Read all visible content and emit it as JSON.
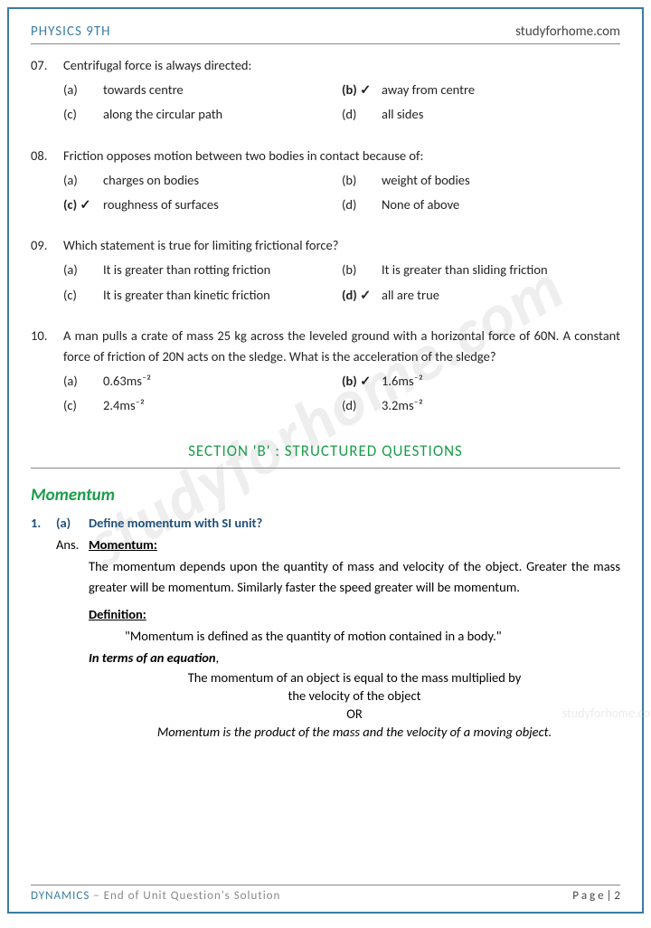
{
  "header": {
    "left": "PHYSICS 9TH",
    "right": "studyforhome.com"
  },
  "watermark": "studyforhome.com",
  "wm2": "studyforhome.com",
  "questions": [
    {
      "num": "07.",
      "text": "Centrifugal force is always directed:",
      "opts": [
        {
          "l": "(a)",
          "t": "towards centre",
          "c": false
        },
        {
          "l": "(b) ✓",
          "t": "away from centre",
          "c": true
        },
        {
          "l": "(c)",
          "t": "along the circular path",
          "c": false
        },
        {
          "l": "(d)",
          "t": "all sides",
          "c": false
        }
      ]
    },
    {
      "num": "08.",
      "text": "Friction opposes motion between two bodies in contact because of:",
      "opts": [
        {
          "l": "(a)",
          "t": "charges on bodies",
          "c": false
        },
        {
          "l": "(b)",
          "t": "weight of bodies",
          "c": false
        },
        {
          "l": "(c) ✓",
          "t": "roughness of surfaces",
          "c": true
        },
        {
          "l": "(d)",
          "t": "None of above",
          "c": false
        }
      ]
    },
    {
      "num": "09.",
      "text": "Which statement is true for limiting frictional force?",
      "opts": [
        {
          "l": "(a)",
          "t": "It is greater than rotting friction",
          "c": false
        },
        {
          "l": "(b)",
          "t": "It is greater than sliding friction",
          "c": false
        },
        {
          "l": "(c)",
          "t": "It is greater than kinetic friction",
          "c": false
        },
        {
          "l": "(d) ✓",
          "t": "all are true",
          "c": true
        }
      ]
    },
    {
      "num": "10.",
      "text": "A man pulls a crate of mass 25 kg across the leveled ground with a horizontal force of 60N. A constant force of friction of 20N acts on the sledge. What is the acceleration of the sledge?",
      "opts": [
        {
          "l": "(a)",
          "t": "0.63ms⁻²",
          "c": false
        },
        {
          "l": "(b) ✓",
          "t": "1.6ms⁻²",
          "c": true
        },
        {
          "l": "(c)",
          "t": "2.4ms⁻²",
          "c": false
        },
        {
          "l": "(d)",
          "t": "3.2ms⁻²",
          "c": false
        }
      ]
    }
  ],
  "section_b": "SECTION 'B' : STRUCTURED QUESTIONS",
  "topic": "Momentum",
  "sq": {
    "n1": "1.",
    "n2": "(a)",
    "t": "Define momentum with SI unit?"
  },
  "ans": {
    "label": "Ans.",
    "h1": "Momentum:",
    "p1": "The momentum depends upon the quantity of mass and velocity of the object. Greater the mass greater will be momentum. Similarly faster the speed greater will be momentum.",
    "h2": "Definition:",
    "quote": "\"Momentum is defined as the quantity of motion contained in a body.\"",
    "eq_h": "In terms of an equation",
    "eq1": "The momentum of an object is equal to the mass multiplied by",
    "eq2": "the velocity of the object",
    "or": "OR",
    "eq3": "Momentum is the product of the mass and the velocity of a moving object."
  },
  "footer": {
    "l1": "DYNAMICS",
    "l2": " – End of Unit Question's Solution",
    "r": "P a g e  | 2"
  }
}
